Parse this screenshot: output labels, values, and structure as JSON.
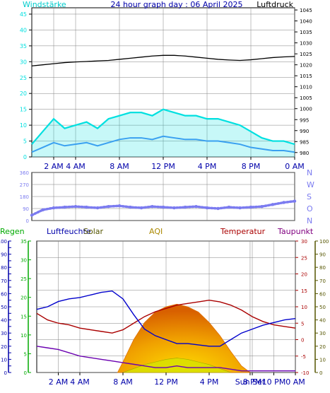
{
  "header": {
    "left_label": "Windstärke",
    "title": "24 hour graph day : 06 April 2025",
    "right_label": "Luftdruck"
  },
  "panel_labels": {
    "regen": "Regen",
    "luftfeuchte": "Luftfeuchte",
    "solar": "Solar",
    "aqi": "AQI",
    "temperatur": "Temperatur",
    "taupunkt": "Taupunkt"
  },
  "colors": {
    "background": "#ffffff",
    "plot_bg": "#ffffff",
    "border": "#000000",
    "grid": "#808080",
    "wind_gust": "#00e0e0",
    "wind_avg": "#3aa0f0",
    "pressure": "#000000",
    "direction": "#7b7bf0",
    "humidity": "#0000cc",
    "temperature": "#aa0000",
    "dewpoint": "#6a00b0",
    "solar_outer": "#e07000",
    "solar_inner": "#ffd000",
    "uv": "#d8e000",
    "rain_axis": "#0000aa",
    "hum_axis": "#00aa00",
    "temp_axis": "#aa0000",
    "solar_axis": "#555500"
  },
  "chart_data": [
    {
      "id": "wind_pressure",
      "type": "line",
      "ylabel_left": "Windstärke",
      "ylabel_right": "Luftdruck",
      "x_ticks": [
        "2 AM",
        "4 AM",
        "8 AM",
        "12 PM",
        "4 PM",
        "8 PM",
        "0 AM"
      ],
      "x_tick_hours": [
        2,
        4,
        8,
        12,
        16,
        20,
        24
      ],
      "x_range": [
        0,
        24
      ],
      "y_left_ticks": [
        0,
        5,
        10,
        15,
        20,
        25,
        30,
        35,
        40,
        45
      ],
      "y_left_range": [
        0,
        47
      ],
      "y_right_ticks": [
        980,
        985,
        990,
        995,
        1000,
        1005,
        1010,
        1015,
        1020,
        1025,
        1030,
        1035,
        1040,
        1045
      ],
      "y_right_range": [
        978,
        1046
      ],
      "series": [
        {
          "key": "pressure",
          "axis": "right",
          "hours": [
            0,
            1,
            2,
            3,
            4,
            5,
            6,
            7,
            8,
            9,
            10,
            11,
            12,
            13,
            14,
            15,
            16,
            17,
            18,
            19,
            20,
            21,
            22,
            23,
            24
          ],
          "values": [
            1019.5,
            1020,
            1020.5,
            1021,
            1021.3,
            1021.5,
            1021.8,
            1022,
            1022.5,
            1023,
            1023.5,
            1024,
            1024.3,
            1024.3,
            1024,
            1023.5,
            1023,
            1022.5,
            1022.2,
            1022,
            1022.3,
            1022.8,
            1023.3,
            1023.6,
            1023.8
          ]
        },
        {
          "key": "wind_gust",
          "axis": "left",
          "hours": [
            0,
            1,
            2,
            3,
            4,
            5,
            6,
            7,
            8,
            9,
            10,
            11,
            12,
            13,
            14,
            15,
            16,
            17,
            18,
            19,
            20,
            21,
            22,
            23,
            24
          ],
          "values": [
            4,
            8,
            12,
            9,
            10,
            11,
            9,
            12,
            13,
            14,
            14,
            13,
            15,
            14,
            13,
            13,
            12,
            12,
            11,
            10,
            8,
            6,
            5,
            5,
            4
          ]
        },
        {
          "key": "wind_avg",
          "axis": "left",
          "hours": [
            0,
            1,
            2,
            3,
            4,
            5,
            6,
            7,
            8,
            9,
            10,
            11,
            12,
            13,
            14,
            15,
            16,
            17,
            18,
            19,
            20,
            21,
            22,
            23,
            24
          ],
          "values": [
            1.5,
            3,
            4.5,
            3.5,
            4,
            4.5,
            3.5,
            4.5,
            5.5,
            6,
            6,
            5.5,
            6.5,
            6,
            5.5,
            5.5,
            5,
            5,
            4.5,
            4,
            3,
            2.5,
            2,
            2,
            1.5
          ]
        }
      ]
    },
    {
      "id": "wind_direction",
      "type": "scatter",
      "ylabel_right_letters": [
        "N",
        "W",
        "S",
        "O",
        "N"
      ],
      "y_left_ticks": [
        0,
        90,
        180,
        270,
        360
      ],
      "y_range": [
        0,
        360
      ],
      "x_range": [
        0,
        24
      ],
      "series": [
        {
          "key": "direction",
          "hours": [
            0,
            1,
            2,
            3,
            4,
            5,
            6,
            7,
            8,
            9,
            10,
            11,
            12,
            13,
            14,
            15,
            16,
            17,
            18,
            19,
            20,
            21,
            22,
            23,
            24
          ],
          "values": [
            40,
            80,
            95,
            100,
            105,
            100,
            95,
            105,
            110,
            100,
            95,
            105,
            100,
            95,
            100,
            105,
            95,
            90,
            100,
            95,
            100,
            105,
            120,
            135,
            145
          ]
        }
      ]
    },
    {
      "id": "climate",
      "type": "line",
      "x_ticks": [
        "2 AM",
        "4 AM",
        "8 AM",
        "12 PM",
        "4 PM",
        "Sun Set",
        "8 PM",
        "10 PM",
        "0 AM"
      ],
      "x_tick_hours": [
        2,
        4,
        8,
        12,
        16,
        19.8,
        20,
        22,
        24
      ],
      "x_range": [
        0,
        24
      ],
      "y_rain_ticks": [
        0,
        5,
        10,
        15,
        20,
        25,
        30,
        35,
        40,
        45,
        50,
        55,
        60,
        65,
        70,
        75,
        80,
        85,
        90,
        95,
        100
      ],
      "y_rain_range": [
        0,
        100
      ],
      "y_hum_ticks": [
        0,
        5,
        10,
        15,
        20,
        25,
        30,
        35
      ],
      "y_hum_range": [
        0,
        35
      ],
      "y_temp_ticks": [
        -10,
        -5,
        0,
        5,
        10,
        15,
        20,
        25,
        30
      ],
      "y_temp_range": [
        -10,
        30
      ],
      "y_solar_ticks": [
        0,
        10,
        20,
        30,
        40,
        50,
        60,
        70,
        80,
        90,
        100
      ],
      "y_solar_range": [
        0,
        100
      ],
      "series": [
        {
          "key": "humidity",
          "axis": "rain",
          "hours": [
            0,
            1,
            2,
            3,
            4,
            5,
            6,
            7,
            8,
            9,
            10,
            11,
            12,
            13,
            14,
            15,
            16,
            17,
            18,
            19,
            20,
            21,
            22,
            23,
            24
          ],
          "values": [
            48,
            50,
            54,
            56,
            57,
            59,
            61,
            62,
            56,
            44,
            33,
            28,
            25,
            22,
            22,
            21,
            20,
            20,
            25,
            30,
            33,
            36,
            38,
            40,
            41
          ]
        },
        {
          "key": "temperature",
          "axis": "temp",
          "hours": [
            0,
            1,
            2,
            3,
            4,
            5,
            6,
            7,
            8,
            9,
            10,
            11,
            12,
            13,
            14,
            15,
            16,
            17,
            18,
            19,
            20,
            21,
            22,
            23,
            24
          ],
          "values": [
            8,
            6,
            5,
            4.5,
            3.5,
            3,
            2.5,
            2,
            3,
            5,
            7,
            8.5,
            9.5,
            10.5,
            11,
            11.5,
            12,
            11.5,
            10.5,
            9,
            7,
            5.5,
            4.5,
            4,
            3.5
          ]
        },
        {
          "key": "dewpoint",
          "axis": "temp",
          "hours": [
            0,
            1,
            2,
            3,
            4,
            5,
            6,
            7,
            8,
            9,
            10,
            11,
            12,
            13,
            14,
            15,
            16,
            17,
            18,
            19,
            20,
            21,
            22,
            23,
            24
          ],
          "values": [
            -2,
            -2.5,
            -3,
            -4,
            -5,
            -5.5,
            -6,
            -6.5,
            -7,
            -7.5,
            -8,
            -8.5,
            -8.5,
            -8,
            -8.5,
            -8.5,
            -8.5,
            -8.5,
            -9,
            -9.5,
            -9.5,
            -9.5,
            -9.5,
            -9.5,
            -9.5
          ]
        },
        {
          "key": "solar",
          "axis": "solar",
          "hours": [
            7.5,
            8,
            9,
            10,
            11,
            12,
            13,
            14,
            15,
            16,
            17,
            18,
            19,
            19.8
          ],
          "values": [
            0,
            8,
            25,
            38,
            46,
            50,
            52,
            50,
            46,
            38,
            28,
            16,
            5,
            0
          ]
        },
        {
          "key": "uv",
          "axis": "solar",
          "hours": [
            8,
            9,
            10,
            11,
            12,
            13,
            14,
            15,
            16,
            17,
            18
          ],
          "values": [
            0,
            3,
            6,
            8,
            10,
            11,
            10,
            8,
            6,
            3,
            0
          ]
        }
      ]
    }
  ]
}
